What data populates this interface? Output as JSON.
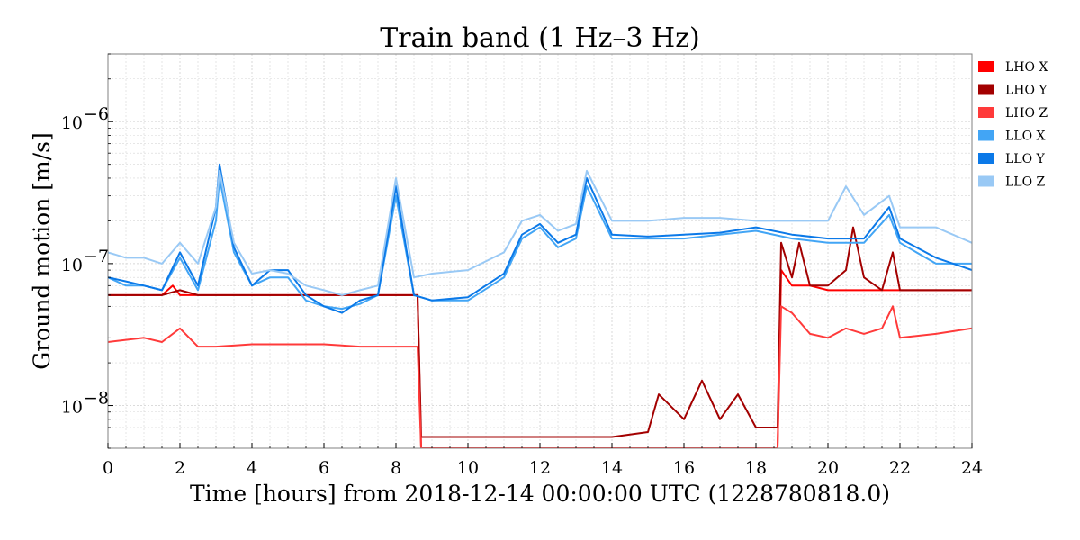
{
  "chart_data": {
    "type": "line",
    "title": "Train band (1 Hz–3 Hz)",
    "xlabel": "Time [hours] from 2018-12-14 00:00:00 UTC (1228780818.0)",
    "ylabel": "Ground motion [m/s]",
    "x_scale": "linear",
    "y_scale": "log",
    "xlim": [
      0,
      24
    ],
    "ylim": [
      5e-09,
      3e-06
    ],
    "x_ticks": [
      0,
      2,
      4,
      6,
      8,
      10,
      12,
      14,
      16,
      18,
      20,
      22,
      24
    ],
    "x_tick_labels": [
      "0",
      "2",
      "4",
      "6",
      "8",
      "10",
      "12",
      "14",
      "16",
      "18",
      "20",
      "22",
      "24"
    ],
    "y_ticks": [
      1e-08,
      1e-07,
      1e-06
    ],
    "y_tick_labels": [
      "10",
      "10",
      "10"
    ],
    "y_tick_exponents": [
      "−8",
      "−7",
      "−6"
    ],
    "grid": true,
    "legend_position": "right, outside plot, top",
    "series": [
      {
        "name": "LHO X",
        "color": "#ff0000",
        "x": [
          0,
          0.5,
          1,
          1.5,
          1.8,
          2,
          2.5,
          3,
          4,
          5,
          6,
          7,
          8,
          8.6,
          8.7,
          9,
          10,
          11,
          12,
          13,
          14,
          15,
          16,
          17,
          18,
          18.6,
          18.7,
          19,
          19.5,
          20,
          21,
          22,
          23,
          24
        ],
        "y": [
          6e-08,
          6e-08,
          6e-08,
          6e-08,
          7e-08,
          6e-08,
          6e-08,
          6e-08,
          6e-08,
          6e-08,
          6e-08,
          6e-08,
          6e-08,
          6e-08,
          5e-09,
          5e-09,
          5e-09,
          5e-09,
          5e-09,
          5e-09,
          5e-09,
          5e-09,
          5e-09,
          5e-09,
          5e-09,
          5e-09,
          9e-08,
          7e-08,
          7e-08,
          6.5e-08,
          6.5e-08,
          6.5e-08,
          6.5e-08,
          6.5e-08
        ]
      },
      {
        "name": "LHO Y",
        "color": "#a30000",
        "x": [
          0,
          0.5,
          1,
          1.5,
          2,
          2.5,
          3,
          4,
          5,
          6,
          7,
          8,
          8.6,
          8.7,
          9,
          10,
          11,
          12,
          13,
          14,
          15,
          15.3,
          16,
          16.5,
          17,
          17.5,
          18,
          18.6,
          18.7,
          19,
          19.2,
          19.5,
          20,
          20.5,
          20.7,
          21,
          21.5,
          21.8,
          22,
          23,
          24
        ],
        "y": [
          6e-08,
          6e-08,
          6e-08,
          6e-08,
          6.5e-08,
          6e-08,
          6e-08,
          6e-08,
          6e-08,
          6e-08,
          6e-08,
          6e-08,
          6e-08,
          6e-09,
          6e-09,
          6e-09,
          6e-09,
          6e-09,
          6e-09,
          6e-09,
          6.5e-09,
          1.2e-08,
          8e-09,
          1.5e-08,
          8e-09,
          1.2e-08,
          7e-09,
          7e-09,
          1.4e-07,
          8e-08,
          1.4e-07,
          7e-08,
          7e-08,
          9e-08,
          1.8e-07,
          8e-08,
          6.5e-08,
          1.2e-07,
          6.5e-08,
          6.5e-08,
          6.5e-08
        ]
      },
      {
        "name": "LHO Z",
        "color": "#ff3a3a",
        "x": [
          0,
          0.5,
          1,
          1.5,
          2,
          2.5,
          3,
          4,
          5,
          6,
          7,
          8,
          8.6,
          8.7,
          9,
          10,
          11,
          12,
          13,
          14,
          15,
          15.5,
          16,
          16.5,
          17,
          17.5,
          18,
          18.6,
          18.7,
          19,
          19.5,
          20,
          20.5,
          21,
          21.5,
          21.8,
          22,
          23,
          24
        ],
        "y": [
          2.8e-08,
          2.9e-08,
          3e-08,
          2.8e-08,
          3.5e-08,
          2.6e-08,
          2.6e-08,
          2.7e-08,
          2.7e-08,
          2.7e-08,
          2.6e-08,
          2.6e-08,
          2.6e-08,
          5e-09,
          5e-09,
          5e-09,
          5e-09,
          5e-09,
          5e-09,
          5e-09,
          5e-09,
          5e-09,
          5e-09,
          5e-09,
          5e-09,
          5e-09,
          5e-09,
          5e-09,
          5e-08,
          4.5e-08,
          3.2e-08,
          3e-08,
          3.5e-08,
          3.2e-08,
          3.5e-08,
          5e-08,
          3e-08,
          3.2e-08,
          3.5e-08
        ]
      },
      {
        "name": "LLO X",
        "color": "#42a5f5",
        "x": [
          0,
          0.5,
          1,
          1.5,
          2,
          2.5,
          3,
          3.1,
          3.5,
          4,
          4.5,
          5,
          5.5,
          6,
          6.5,
          7,
          7.5,
          8,
          8.5,
          9,
          10,
          11,
          11.5,
          12,
          12.5,
          13,
          13.3,
          14,
          15,
          16,
          17,
          18,
          19,
          20,
          21,
          21.7,
          22,
          23,
          24
        ],
        "y": [
          8e-08,
          7e-08,
          7e-08,
          6.5e-08,
          1.1e-07,
          6.5e-08,
          2e-07,
          4e-07,
          1.2e-07,
          7e-08,
          8e-08,
          8e-08,
          5.5e-08,
          5e-08,
          4.8e-08,
          5.2e-08,
          6e-08,
          3e-07,
          6e-08,
          5.5e-08,
          5.5e-08,
          8e-08,
          1.5e-07,
          1.8e-07,
          1.3e-07,
          1.5e-07,
          3.5e-07,
          1.5e-07,
          1.5e-07,
          1.5e-07,
          1.6e-07,
          1.7e-07,
          1.5e-07,
          1.4e-07,
          1.4e-07,
          2.2e-07,
          1.4e-07,
          1e-07,
          1e-07
        ]
      },
      {
        "name": "LLO Y",
        "color": "#0b79e8",
        "x": [
          0,
          0.5,
          1,
          1.5,
          2,
          2.5,
          3,
          3.1,
          3.5,
          4,
          4.5,
          5,
          5.5,
          6,
          6.5,
          7,
          7.5,
          8,
          8.5,
          9,
          10,
          11,
          11.5,
          12,
          12.5,
          13,
          13.3,
          14,
          15,
          16,
          17,
          18,
          19,
          20,
          21,
          21.7,
          22,
          23,
          24
        ],
        "y": [
          8e-08,
          7.5e-08,
          7e-08,
          6.5e-08,
          1.2e-07,
          7e-08,
          2.5e-07,
          5e-07,
          1.3e-07,
          7e-08,
          9e-08,
          9e-08,
          6e-08,
          5e-08,
          4.5e-08,
          5.5e-08,
          6e-08,
          3.5e-07,
          6e-08,
          5.5e-08,
          5.8e-08,
          8.5e-08,
          1.6e-07,
          1.9e-07,
          1.4e-07,
          1.6e-07,
          4e-07,
          1.6e-07,
          1.55e-07,
          1.6e-07,
          1.65e-07,
          1.8e-07,
          1.6e-07,
          1.5e-07,
          1.5e-07,
          2.5e-07,
          1.5e-07,
          1.1e-07,
          9e-08
        ]
      },
      {
        "name": "LLO Z",
        "color": "#99c9f5",
        "x": [
          0,
          0.5,
          1,
          1.5,
          2,
          2.5,
          3,
          3.1,
          3.5,
          4,
          4.5,
          5,
          5.5,
          6,
          6.5,
          7,
          7.5,
          8,
          8.5,
          9,
          10,
          11,
          11.5,
          12,
          12.5,
          13,
          13.3,
          14,
          15,
          16,
          17,
          18,
          19,
          20,
          20.5,
          21,
          21.7,
          22,
          23,
          24
        ],
        "y": [
          1.2e-07,
          1.1e-07,
          1.1e-07,
          1e-07,
          1.4e-07,
          1e-07,
          2.5e-07,
          4.5e-07,
          1.4e-07,
          8.5e-08,
          9e-08,
          8.5e-08,
          7e-08,
          6.5e-08,
          6e-08,
          6.5e-08,
          7e-08,
          4e-07,
          8e-08,
          8.5e-08,
          9e-08,
          1.2e-07,
          2e-07,
          2.2e-07,
          1.7e-07,
          1.9e-07,
          4.5e-07,
          2e-07,
          2e-07,
          2.1e-07,
          2.1e-07,
          2e-07,
          2e-07,
          2e-07,
          3.5e-07,
          2.2e-07,
          3e-07,
          1.8e-07,
          1.8e-07,
          1.4e-07
        ]
      }
    ]
  }
}
